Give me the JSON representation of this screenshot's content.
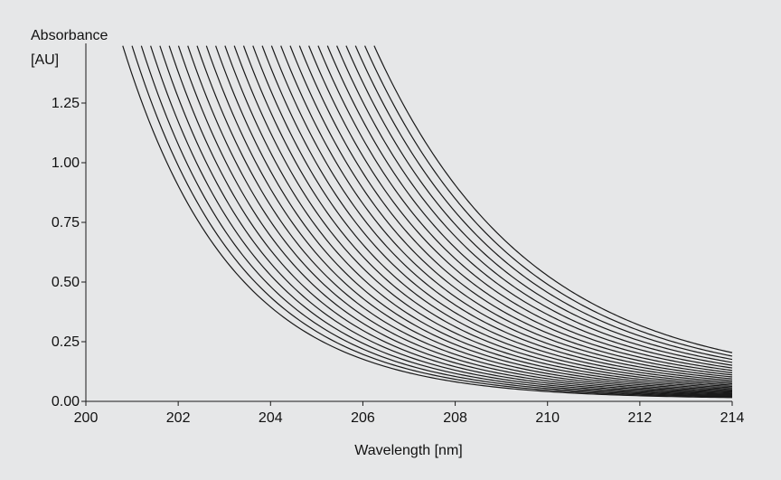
{
  "chart_data": {
    "type": "line",
    "title": "",
    "xlabel": "Wavelength [nm]",
    "ylabel_line1": "Absorbance",
    "ylabel_line2": "[AU]",
    "xlim": [
      200,
      214
    ],
    "ylim": [
      0,
      1.5
    ],
    "x_ticks": [
      200,
      202,
      204,
      206,
      208,
      210,
      212,
      214
    ],
    "x_tick_labels": [
      "200",
      "202",
      "204",
      "206",
      "208",
      "210",
      "212",
      "214"
    ],
    "y_ticks": [
      0,
      0.25,
      0.5,
      0.75,
      1.0,
      1.25
    ],
    "y_tick_labels": [
      "0.00",
      "0.25",
      "0.50",
      "0.75",
      "1.00",
      "1.25"
    ],
    "grid": false,
    "legend": "none",
    "series_count": 28,
    "clip_top": 1.49,
    "curve_model": {
      "first_curve": {
        "A": 1.36,
        "k": 0.42,
        "c": 0.01,
        "x0": 201.0
      },
      "last_curve": {
        "A": 1.36,
        "k": 0.3,
        "c": 0.065,
        "x0": 206.4
      }
    },
    "colors": {
      "background": "#e6e7e8",
      "line": "#1a1a1a"
    }
  }
}
